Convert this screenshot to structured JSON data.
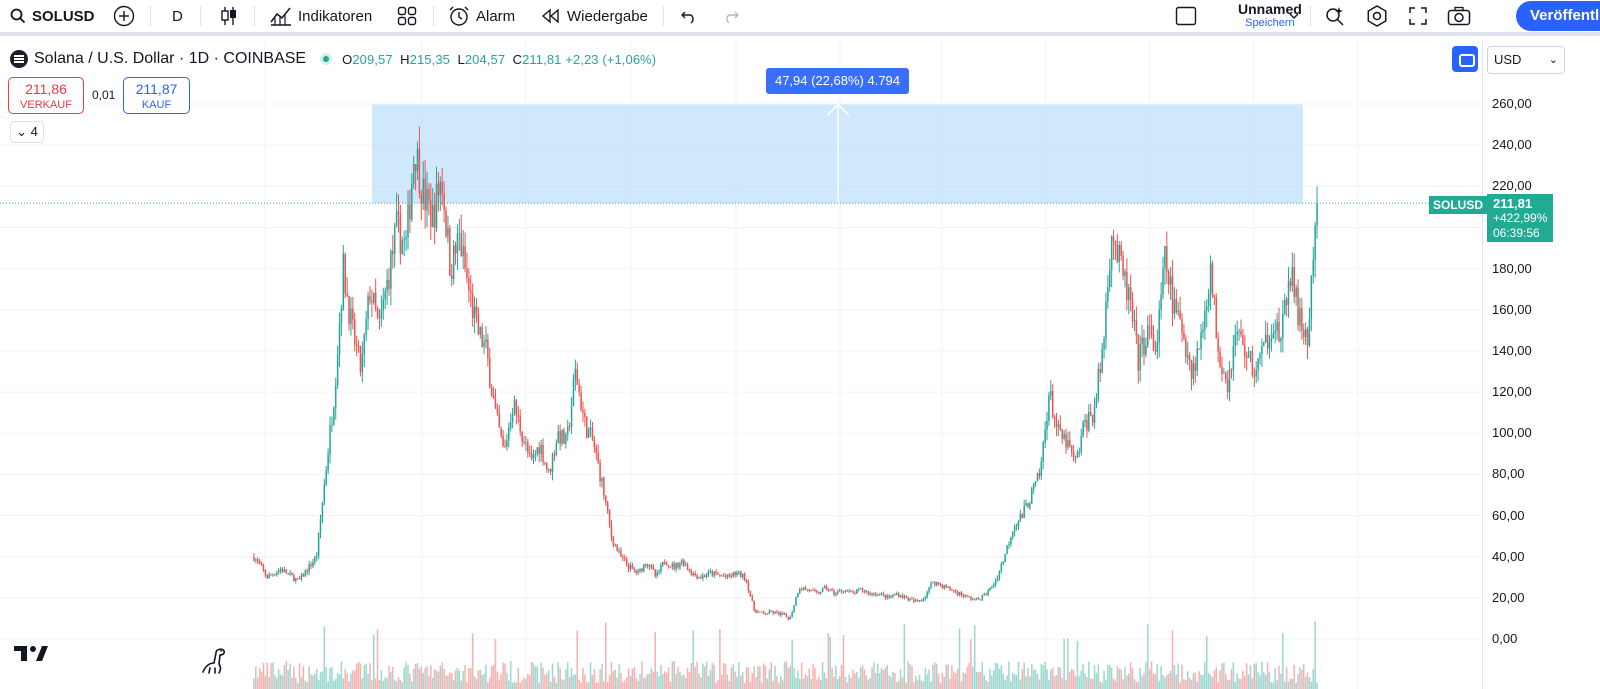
{
  "toolbar": {
    "symbol": "SOLUSD",
    "interval": "D",
    "indicators_label": "Indikatoren",
    "alarm_label": "Alarm",
    "replay_label": "Wiedergabe",
    "layout_name": "Unnamed",
    "layout_sub": "Speichern",
    "publish_label": "Veröffentl"
  },
  "legend": {
    "title": "Solana / U.S. Dollar · 1D · COINBASE",
    "open_k": "O",
    "open": "209,57",
    "high_k": "H",
    "high": "215,35",
    "low_k": "L",
    "low": "204,57",
    "close_k": "C",
    "close": "211,81",
    "change": "+2,23 (+1,06%)"
  },
  "trade": {
    "sell_price": "211,86",
    "sell_label": "VERKAUF",
    "spread": "0,01",
    "buy_price": "211,87",
    "buy_label": "KAUF",
    "collapse_count": "4"
  },
  "measure": {
    "label": "47,94 (22,68%) 4.794"
  },
  "currency": "USD",
  "price_axis": {
    "labels": [
      "260,00",
      "240,00",
      "220,00",
      "200,00",
      "180,00",
      "160,00",
      "140,00",
      "120,00",
      "100,00",
      "80,00",
      "60,00",
      "40,00",
      "20,00",
      "0,00"
    ]
  },
  "last_price": {
    "symbol": "SOLUSD",
    "price": "211,81",
    "change_pct": "+422,99%",
    "countdown": "06:39:56"
  },
  "colors": {
    "up": "#26a69a",
    "down": "#ef5350",
    "accent": "#2962ff",
    "measure_fill": "#bbdefb"
  },
  "chart_data": {
    "type": "candlestick",
    "ylim": [
      0,
      270
    ],
    "grid": true,
    "close_path": [
      [
        0,
        40
      ],
      [
        3,
        30
      ],
      [
        6,
        34
      ],
      [
        10,
        28
      ],
      [
        14,
        40
      ],
      [
        16,
        80
      ],
      [
        18,
        120
      ],
      [
        20,
        180
      ],
      [
        22,
        150
      ],
      [
        24,
        130
      ],
      [
        26,
        170
      ],
      [
        28,
        150
      ],
      [
        30,
        175
      ],
      [
        32,
        200
      ],
      [
        34,
        190
      ],
      [
        36,
        240
      ],
      [
        38,
        215
      ],
      [
        40,
        205
      ],
      [
        42,
        225
      ],
      [
        44,
        180
      ],
      [
        46,
        195
      ],
      [
        48,
        170
      ],
      [
        50,
        150
      ],
      [
        52,
        140
      ],
      [
        54,
        110
      ],
      [
        56,
        90
      ],
      [
        58,
        115
      ],
      [
        60,
        100
      ],
      [
        62,
        85
      ],
      [
        64,
        95
      ],
      [
        66,
        80
      ],
      [
        68,
        100
      ],
      [
        70,
        95
      ],
      [
        72,
        130
      ],
      [
        74,
        105
      ],
      [
        76,
        95
      ],
      [
        78,
        75
      ],
      [
        80,
        50
      ],
      [
        82,
        40
      ],
      [
        84,
        35
      ],
      [
        86,
        32
      ],
      [
        88,
        38
      ],
      [
        90,
        30
      ],
      [
        92,
        38
      ],
      [
        94,
        35
      ],
      [
        96,
        38
      ],
      [
        98,
        32
      ],
      [
        100,
        30
      ],
      [
        102,
        32
      ],
      [
        104,
        31
      ],
      [
        106,
        30
      ],
      [
        108,
        32
      ],
      [
        110,
        30
      ],
      [
        112,
        14
      ],
      [
        114,
        12
      ],
      [
        116,
        13
      ],
      [
        118,
        12
      ],
      [
        120,
        10
      ],
      [
        122,
        25
      ],
      [
        124,
        24
      ],
      [
        126,
        22
      ],
      [
        128,
        25
      ],
      [
        130,
        22
      ],
      [
        132,
        24
      ],
      [
        134,
        22
      ],
      [
        136,
        24
      ],
      [
        138,
        22
      ],
      [
        140,
        22
      ],
      [
        142,
        20
      ],
      [
        144,
        22
      ],
      [
        146,
        20
      ],
      [
        148,
        18
      ],
      [
        150,
        20
      ],
      [
        152,
        28
      ],
      [
        154,
        26
      ],
      [
        156,
        24
      ],
      [
        158,
        22
      ],
      [
        160,
        20
      ],
      [
        162,
        19
      ],
      [
        164,
        22
      ],
      [
        166,
        28
      ],
      [
        168,
        40
      ],
      [
        170,
        55
      ],
      [
        172,
        60
      ],
      [
        174,
        70
      ],
      [
        176,
        80
      ],
      [
        178,
        120
      ],
      [
        180,
        100
      ],
      [
        182,
        95
      ],
      [
        184,
        85
      ],
      [
        186,
        105
      ],
      [
        188,
        110
      ],
      [
        190,
        140
      ],
      [
        192,
        200
      ],
      [
        194,
        180
      ],
      [
        196,
        165
      ],
      [
        198,
        135
      ],
      [
        200,
        150
      ],
      [
        202,
        140
      ],
      [
        204,
        185
      ],
      [
        206,
        160
      ],
      [
        208,
        150
      ],
      [
        210,
        130
      ],
      [
        212,
        145
      ],
      [
        214,
        180
      ],
      [
        216,
        140
      ],
      [
        218,
        125
      ],
      [
        220,
        150
      ],
      [
        222,
        140
      ],
      [
        224,
        130
      ],
      [
        226,
        140
      ],
      [
        228,
        155
      ],
      [
        230,
        145
      ],
      [
        232,
        180
      ],
      [
        234,
        155
      ],
      [
        236,
        145
      ],
      [
        238,
        211.81
      ]
    ]
  }
}
